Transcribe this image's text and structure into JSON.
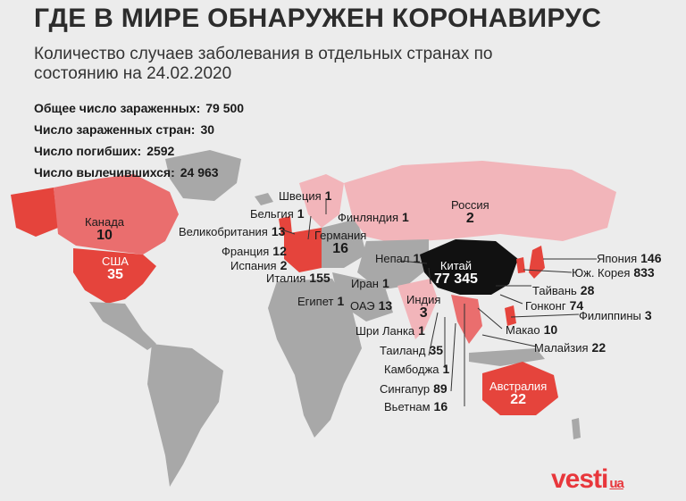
{
  "title": "ГДЕ В МИРЕ ОБНАРУЖЕН КОРОНАВИРУС",
  "subtitle": "Количество случаев заболевания в отдельных странах по состоянию на 24.02.2020",
  "stats": [
    {
      "label": "Общее число зараженных:",
      "value": "79 500"
    },
    {
      "label": "Число зараженных стран:",
      "value": "30"
    },
    {
      "label": "Число погибших:",
      "value": "2592"
    },
    {
      "label": "Число вылечившихся:",
      "value": "24 963"
    }
  ],
  "countries": [
    {
      "id": "sweden",
      "name": "Швеция",
      "value": "1"
    },
    {
      "id": "belgium",
      "name": "Бельгия",
      "value": "1"
    },
    {
      "id": "finland",
      "name": "Финляндия",
      "value": "1"
    },
    {
      "id": "russia",
      "name": "Россия",
      "value": "2"
    },
    {
      "id": "canada",
      "name": "Канада",
      "value": "10"
    },
    {
      "id": "uk",
      "name": "Великобритания",
      "value": "13"
    },
    {
      "id": "germany",
      "name": "Германия",
      "value": "16"
    },
    {
      "id": "france",
      "name": "Франция",
      "value": "12"
    },
    {
      "id": "spain",
      "name": "Испания",
      "value": "2"
    },
    {
      "id": "italy",
      "name": "Италия",
      "value": "155"
    },
    {
      "id": "usa",
      "name": "США",
      "value": "35"
    },
    {
      "id": "nepal",
      "name": "Непал",
      "value": "1"
    },
    {
      "id": "china",
      "name": "Китай",
      "value": "77 345"
    },
    {
      "id": "iran",
      "name": "Иран",
      "value": "1"
    },
    {
      "id": "egypt",
      "name": "Египет",
      "value": "1"
    },
    {
      "id": "uae",
      "name": "ОАЭ",
      "value": "13"
    },
    {
      "id": "india",
      "name": "Индия",
      "value": "3"
    },
    {
      "id": "srilanka",
      "name": "Шри  Ланка",
      "value": "1"
    },
    {
      "id": "thailand",
      "name": "Таиланд",
      "value": "35"
    },
    {
      "id": "cambodia",
      "name": "Камбоджа",
      "value": "1"
    },
    {
      "id": "singapore",
      "name": "Сингапур",
      "value": "89"
    },
    {
      "id": "vietnam",
      "name": "Вьетнам",
      "value": "16"
    },
    {
      "id": "japan",
      "name": "Япония",
      "value": "146"
    },
    {
      "id": "korea",
      "name": "Юж. Корея",
      "value": "833"
    },
    {
      "id": "taiwan",
      "name": "Тайвань",
      "value": "28"
    },
    {
      "id": "hongkong",
      "name": "Гонконг",
      "value": "74"
    },
    {
      "id": "philippines",
      "name": "Филиппины",
      "value": "3"
    },
    {
      "id": "macao",
      "name": "Макао",
      "value": "10"
    },
    {
      "id": "malaysia",
      "name": "Малайзия",
      "value": "22"
    },
    {
      "id": "australia",
      "name": "Австралия",
      "value": "22"
    }
  ],
  "logo": {
    "main": "vesti",
    "suffix": "ua"
  },
  "colors": {
    "light": "#f2b5ba",
    "medium": "#ea6e6e",
    "strong": "#e5443c",
    "china": "#111111",
    "land": "#a8a8a8",
    "background": "#ececec"
  }
}
